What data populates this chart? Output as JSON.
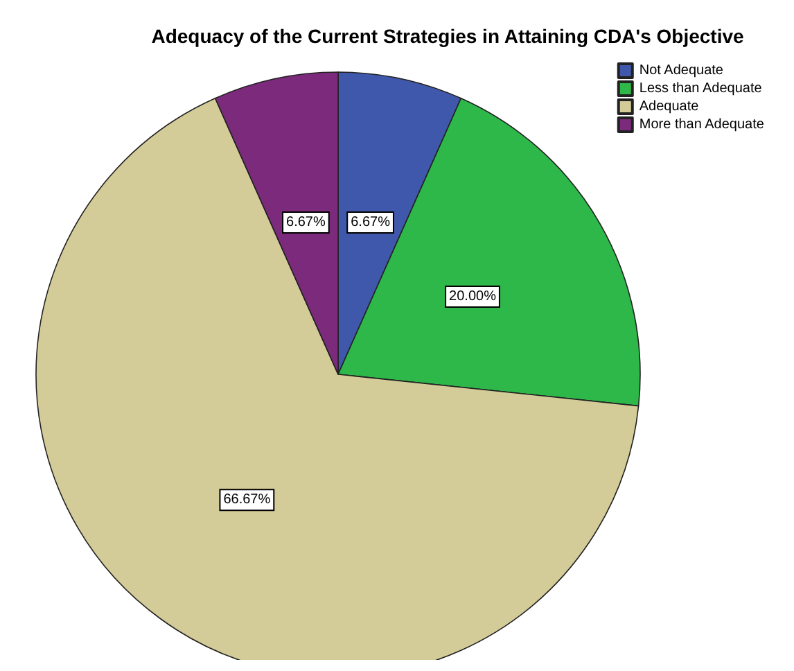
{
  "chart_data": {
    "type": "pie",
    "title": "Adequacy of the Current Strategies in Attaining CDA's Objective",
    "categories": [
      "Not Adequate",
      "Less than Adequate",
      "Adequate",
      "More than Adequate"
    ],
    "values": [
      6.67,
      20.0,
      66.67,
      6.67
    ],
    "colors": [
      "#3f58ab",
      "#2fb84a",
      "#d4cc98",
      "#7c2a7c"
    ],
    "value_labels": [
      "6.67%",
      "20.00%",
      "66.67%",
      "6.67%"
    ],
    "legend": "top right"
  }
}
